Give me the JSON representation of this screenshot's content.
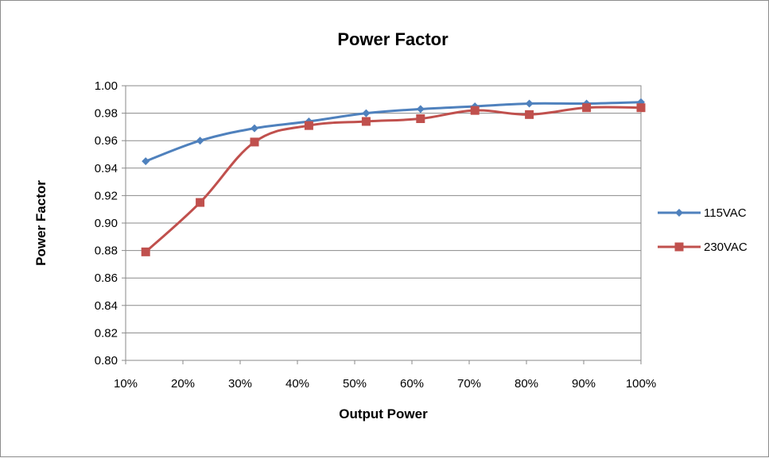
{
  "chart_data": {
    "type": "line",
    "title": "Power Factor",
    "xlabel": "Output Power",
    "ylabel": "Power Factor",
    "xlim": [
      10,
      100
    ],
    "ylim": [
      0.8,
      1.0
    ],
    "x_ticks": [
      "10%",
      "20%",
      "30%",
      "40%",
      "50%",
      "60%",
      "70%",
      "80%",
      "90%",
      "100%"
    ],
    "y_ticks": [
      "0.80",
      "0.82",
      "0.84",
      "0.86",
      "0.88",
      "0.90",
      "0.92",
      "0.94",
      "0.96",
      "0.98",
      "1.00"
    ],
    "grid": "horizontal",
    "legend_position": "right",
    "series": [
      {
        "name": "115VAC",
        "color": "#4f81bd",
        "marker": "diamond",
        "x": [
          13.5,
          23,
          32.5,
          42,
          52,
          61.5,
          71,
          80.5,
          90.5,
          100
        ],
        "y": [
          0.945,
          0.96,
          0.969,
          0.974,
          0.98,
          0.983,
          0.985,
          0.987,
          0.987,
          0.988
        ]
      },
      {
        "name": "230VAC",
        "color": "#c0504d",
        "marker": "square",
        "x": [
          13.5,
          23,
          32.5,
          42,
          52,
          61.5,
          71,
          80.5,
          90.5,
          100
        ],
        "y": [
          0.879,
          0.915,
          0.959,
          0.971,
          0.974,
          0.976,
          0.982,
          0.979,
          0.984,
          0.984
        ]
      }
    ]
  }
}
